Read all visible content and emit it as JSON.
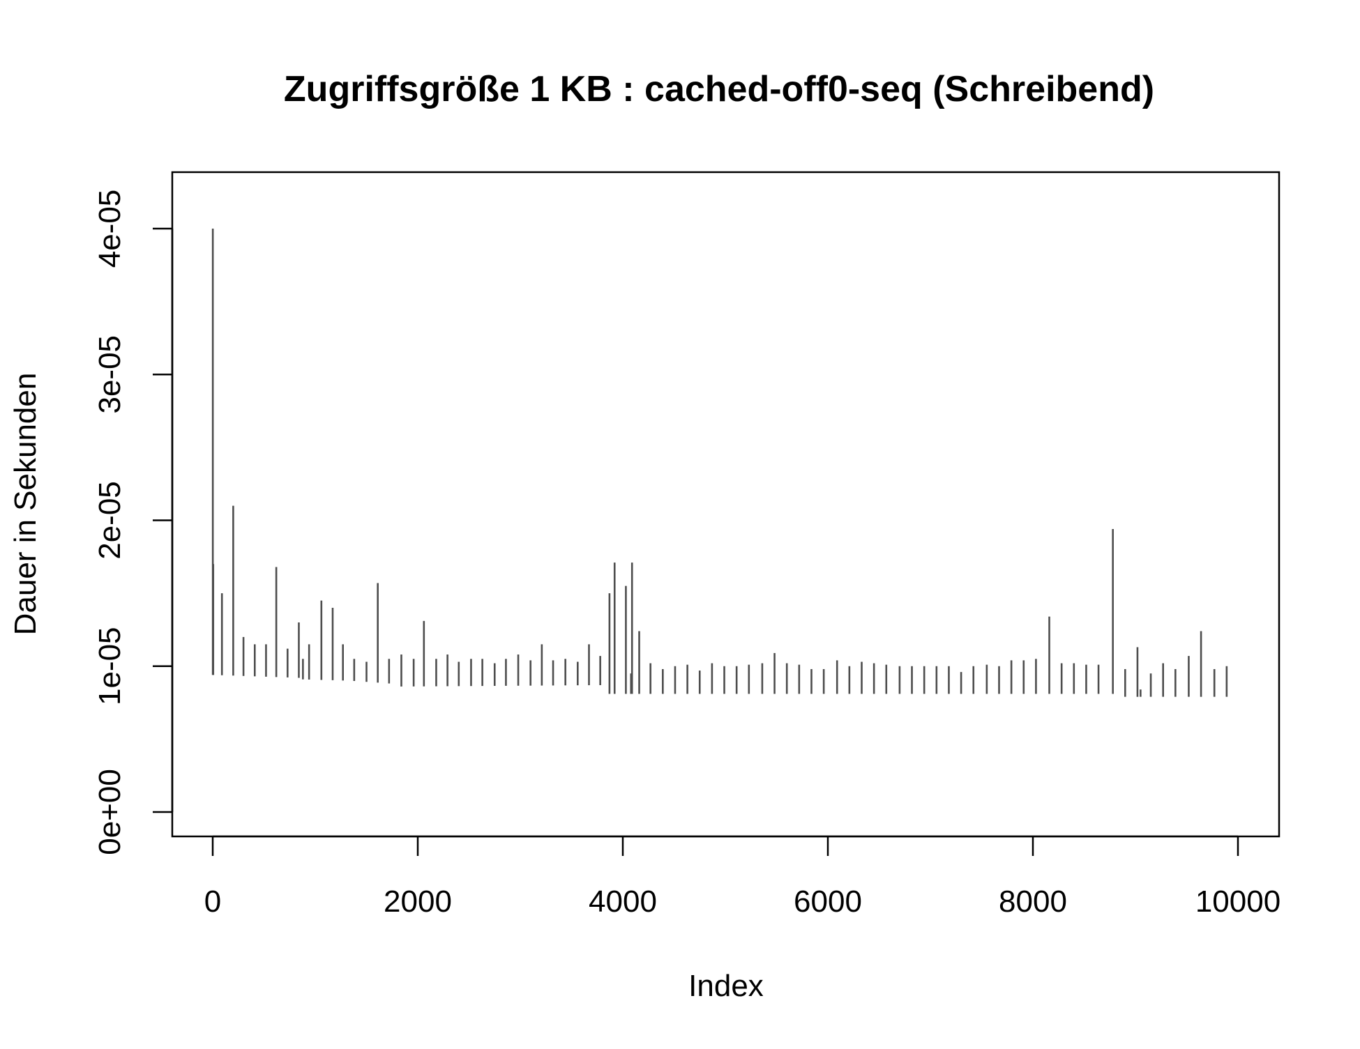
{
  "chart_data": {
    "type": "line",
    "title": "Zugriffsgröße 1 KB : cached-off0-seq (Schreibend)",
    "xlabel": "Index",
    "ylabel": "Dauer in Sekunden",
    "xlim": [
      1,
      10000
    ],
    "ylim": [
      0,
      4e-05
    ],
    "x_ticks": [
      0,
      2000,
      4000,
      6000,
      8000,
      10000
    ],
    "x_tick_labels": [
      "0",
      "2000",
      "4000",
      "6000",
      "8000",
      "10000"
    ],
    "y_ticks": [
      0,
      1e-05,
      2e-05,
      3e-05,
      4e-05
    ],
    "y_tick_labels": [
      "0e+00",
      "1e-05",
      "2e-05",
      "3e-05",
      "4e-05"
    ],
    "grid": false,
    "legend": "none",
    "line_color": "#4d4d4d",
    "baseline_segments": [
      {
        "x_start": 1,
        "x_end": 850,
        "y_start": 9.4e-06,
        "y_end": 9.2e-06
      },
      {
        "x_start": 850,
        "x_end": 1350,
        "y_start": 9.1e-06,
        "y_end": 9e-06
      },
      {
        "x_start": 1350,
        "x_end": 1750,
        "y_start": 9e-06,
        "y_end": 8.8e-06
      },
      {
        "x_start": 1750,
        "x_end": 3800,
        "y_start": 8.6e-06,
        "y_end": 8.7e-06
      },
      {
        "x_start": 3800,
        "x_end": 8800,
        "y_start": 8.1e-06,
        "y_end": 8.1e-06
      },
      {
        "x_start": 8800,
        "x_end": 10000,
        "y_start": 7.9e-06,
        "y_end": 7.9e-06
      }
    ],
    "series": [
      {
        "values": [
          [
            1,
            4e-05
          ],
          [
            5,
            1.7e-05
          ],
          [
            90,
            1.5e-05
          ],
          [
            200,
            2.1e-05
          ],
          [
            300,
            1.2e-05
          ],
          [
            410,
            1.15e-05
          ],
          [
            520,
            1.15e-05
          ],
          [
            620,
            1.68e-05
          ],
          [
            730,
            1.12e-05
          ],
          [
            840,
            1.3e-05
          ],
          [
            880,
            1.05e-05
          ],
          [
            940,
            1.15e-05
          ],
          [
            1060,
            1.45e-05
          ],
          [
            1170,
            1.4e-05
          ],
          [
            1270,
            1.15e-05
          ],
          [
            1380,
            1.05e-05
          ],
          [
            1500,
            1.03e-05
          ],
          [
            1610,
            1.57e-05
          ],
          [
            1720,
            1.05e-05
          ],
          [
            1840,
            1.08e-05
          ],
          [
            1960,
            1.05e-05
          ],
          [
            2060,
            1.31e-05
          ],
          [
            2180,
            1.05e-05
          ],
          [
            2290,
            1.08e-05
          ],
          [
            2400,
            1.03e-05
          ],
          [
            2520,
            1.05e-05
          ],
          [
            2630,
            1.05e-05
          ],
          [
            2750,
            1.02e-05
          ],
          [
            2860,
            1.05e-05
          ],
          [
            2980,
            1.08e-05
          ],
          [
            3100,
            1.04e-05
          ],
          [
            3210,
            1.15e-05
          ],
          [
            3320,
            1.04e-05
          ],
          [
            3440,
            1.05e-05
          ],
          [
            3560,
            1.03e-05
          ],
          [
            3670,
            1.15e-05
          ],
          [
            3780,
            1.07e-05
          ],
          [
            3870,
            1.5e-05
          ],
          [
            3920,
            1.71e-05
          ],
          [
            4030,
            1.55e-05
          ],
          [
            4080,
            9.5e-06
          ],
          [
            4090,
            1.71e-05
          ],
          [
            4160,
            1.24e-05
          ],
          [
            4270,
            1.02e-05
          ],
          [
            4390,
            9.8e-06
          ],
          [
            4510,
            1e-05
          ],
          [
            4630,
            1.01e-05
          ],
          [
            4750,
            9.7e-06
          ],
          [
            4870,
            1.02e-05
          ],
          [
            4990,
            1e-05
          ],
          [
            5110,
            1e-05
          ],
          [
            5230,
            1.01e-05
          ],
          [
            5360,
            1.02e-05
          ],
          [
            5480,
            1.09e-05
          ],
          [
            5600,
            1.02e-05
          ],
          [
            5720,
            1.01e-05
          ],
          [
            5840,
            9.8e-06
          ],
          [
            5960,
            9.8e-06
          ],
          [
            6090,
            1.04e-05
          ],
          [
            6210,
            1e-05
          ],
          [
            6330,
            1.03e-05
          ],
          [
            6450,
            1.02e-05
          ],
          [
            6570,
            1.01e-05
          ],
          [
            6700,
            1e-05
          ],
          [
            6820,
            1e-05
          ],
          [
            6940,
            1e-05
          ],
          [
            7060,
            1e-05
          ],
          [
            7180,
            1e-05
          ],
          [
            7300,
            9.6e-06
          ],
          [
            7420,
            1e-05
          ],
          [
            7550,
            1.01e-05
          ],
          [
            7670,
            1e-05
          ],
          [
            7790,
            1.04e-05
          ],
          [
            7910,
            1.04e-05
          ],
          [
            8030,
            1.05e-05
          ],
          [
            8160,
            1.34e-05
          ],
          [
            8280,
            1.02e-05
          ],
          [
            8400,
            1.02e-05
          ],
          [
            8520,
            1.01e-05
          ],
          [
            8640,
            1.01e-05
          ],
          [
            8780,
            1.94e-05
          ],
          [
            8900,
            9.8e-06
          ],
          [
            9020,
            1.13e-05
          ],
          [
            9050,
            8.4e-06
          ],
          [
            9150,
            9.5e-06
          ],
          [
            9270,
            1.02e-05
          ],
          [
            9390,
            9.8e-06
          ],
          [
            9520,
            1.07e-05
          ],
          [
            9640,
            1.24e-05
          ],
          [
            9770,
            9.8e-06
          ],
          [
            9890,
            1e-05
          ]
        ]
      }
    ]
  }
}
